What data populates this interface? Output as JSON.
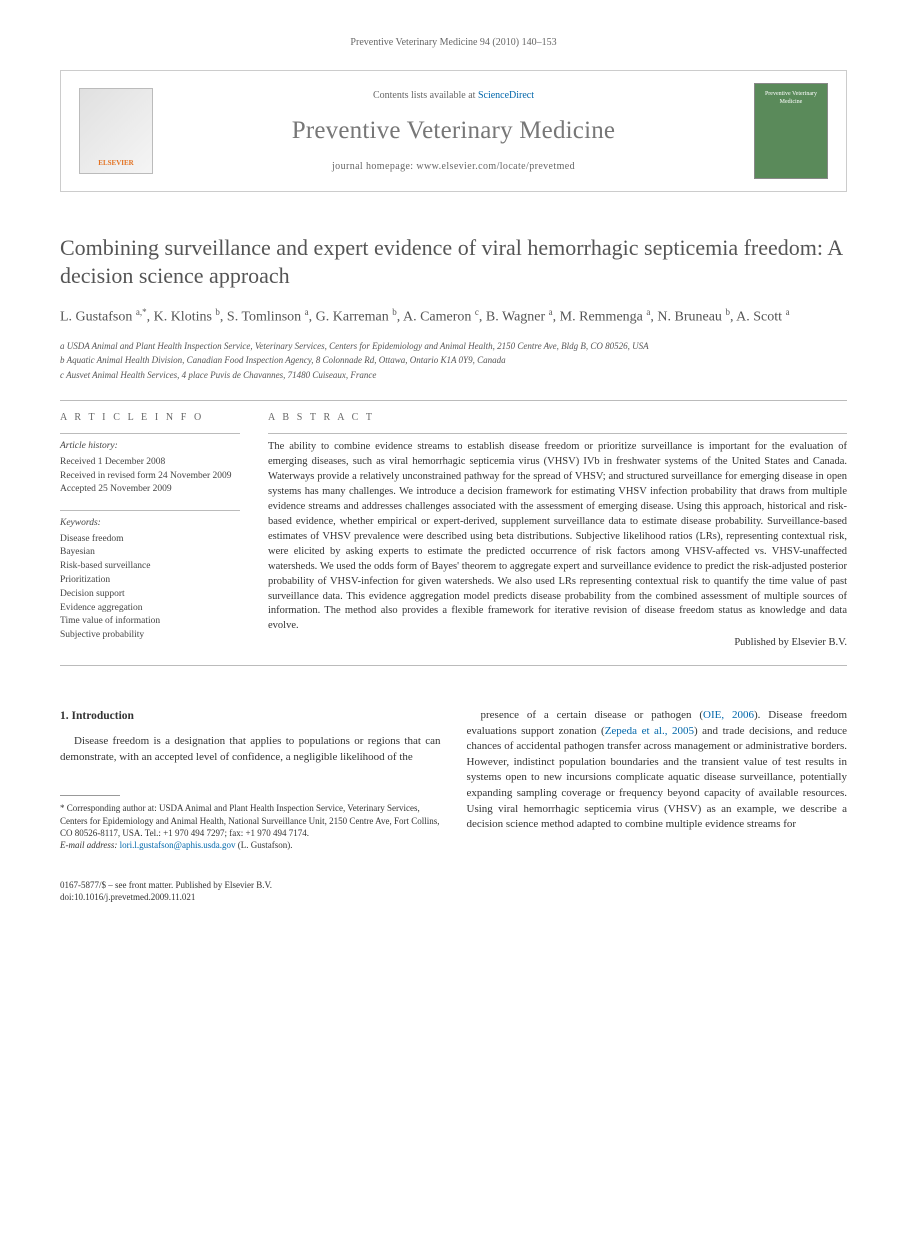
{
  "running_head": "Preventive Veterinary Medicine 94 (2010) 140–153",
  "masthead": {
    "contents_prefix": "Contents lists available at ",
    "contents_link": "ScienceDirect",
    "journal": "Preventive Veterinary Medicine",
    "homepage_prefix": "journal homepage: ",
    "homepage": "www.elsevier.com/locate/prevetmed",
    "publisher_logo_text": "ELSEVIER",
    "cover_text": "Preventive Veterinary Medicine"
  },
  "title": "Combining surveillance and expert evidence of viral hemorrhagic septicemia freedom: A decision science approach",
  "authors_html": "L. Gustafson <sup>a,*</sup>, K. Klotins <sup>b</sup>, S. Tomlinson <sup>a</sup>, G. Karreman <sup>b</sup>, A. Cameron <sup>c</sup>, B. Wagner <sup>a</sup>, M. Remmenga <sup>a</sup>, N. Bruneau <sup>b</sup>, A. Scott <sup>a</sup>",
  "affiliations": {
    "a": "a USDA Animal and Plant Health Inspection Service, Veterinary Services, Centers for Epidemiology and Animal Health, 2150 Centre Ave, Bldg B, CO 80526, USA",
    "b": "b Aquatic Animal Health Division, Canadian Food Inspection Agency, 8 Colonnade Rd, Ottawa, Ontario K1A 0Y9, Canada",
    "c": "c Ausvet Animal Health Services, 4 place Puvis de Chavannes, 71480 Cuiseaux, France"
  },
  "article_info": {
    "label": "A R T I C L E   I N F O",
    "history_heading": "Article history:",
    "received": "Received 1 December 2008",
    "revised": "Received in revised form 24 November 2009",
    "accepted": "Accepted 25 November 2009",
    "keywords_heading": "Keywords:",
    "keywords": [
      "Disease freedom",
      "Bayesian",
      "Risk-based surveillance",
      "Prioritization",
      "Decision support",
      "Evidence aggregation",
      "Time value of information",
      "Subjective probability"
    ]
  },
  "abstract": {
    "label": "A B S T R A C T",
    "text": "The ability to combine evidence streams to establish disease freedom or prioritize surveillance is important for the evaluation of emerging diseases, such as viral hemorrhagic septicemia virus (VHSV) IVb in freshwater systems of the United States and Canada. Waterways provide a relatively unconstrained pathway for the spread of VHSV; and structured surveillance for emerging disease in open systems has many challenges. We introduce a decision framework for estimating VHSV infection probability that draws from multiple evidence streams and addresses challenges associated with the assessment of emerging disease. Using this approach, historical and risk-based evidence, whether empirical or expert-derived, supplement surveillance data to estimate disease probability. Surveillance-based estimates of VHSV prevalence were described using beta distributions. Subjective likelihood ratios (LRs), representing contextual risk, were elicited by asking experts to estimate the predicted occurrence of risk factors among VHSV-affected vs. VHSV-unaffected watersheds. We used the odds form of Bayes' theorem to aggregate expert and surveillance evidence to predict the risk-adjusted posterior probability of VHSV-infection for given watersheds. We also used LRs representing contextual risk to quantify the time value of past surveillance data. This evidence aggregation model predicts disease probability from the combined assessment of multiple sources of information. The method also provides a flexible framework for iterative revision of disease freedom status as knowledge and data evolve.",
    "publisher": "Published by Elsevier B.V."
  },
  "body": {
    "section_number": "1.",
    "section_title": "Introduction",
    "left_para": "Disease freedom is a designation that applies to populations or regions that can demonstrate, with an accepted level of confidence, a negligible likelihood of the",
    "right_para_1": "presence of a certain disease or pathogen (",
    "right_cite_1": "OIE, 2006",
    "right_para_2": "). Disease freedom evaluations support zonation (",
    "right_cite_2": "Zepeda et al., 2005",
    "right_para_3": ") and trade decisions, and reduce chances of accidental pathogen transfer across management or administrative borders. However, indistinct population boundaries and the transient value of test results in systems open to new incursions complicate aquatic disease surveillance, potentially expanding sampling coverage or frequency beyond capacity of available resources. Using viral hemorrhagic septicemia virus (VHSV) as an example, we describe a decision science method adapted to combine multiple evidence streams for"
  },
  "correspondence": {
    "text": "* Corresponding author at: USDA Animal and Plant Health Inspection Service, Veterinary Services, Centers for Epidemiology and Animal Health, National Surveillance Unit, 2150 Centre Ave, Fort Collins, CO 80526-8117, USA. Tel.: +1 970 494 7297; fax: +1 970 494 7174.",
    "email_label": "E-mail address:",
    "email": "lori.l.gustafson@aphis.usda.gov",
    "email_owner": "(L. Gustafson)."
  },
  "doi": {
    "line1": "0167-5877/$ – see front matter. Published by Elsevier B.V.",
    "line2": "doi:10.1016/j.prevetmed.2009.11.021"
  }
}
